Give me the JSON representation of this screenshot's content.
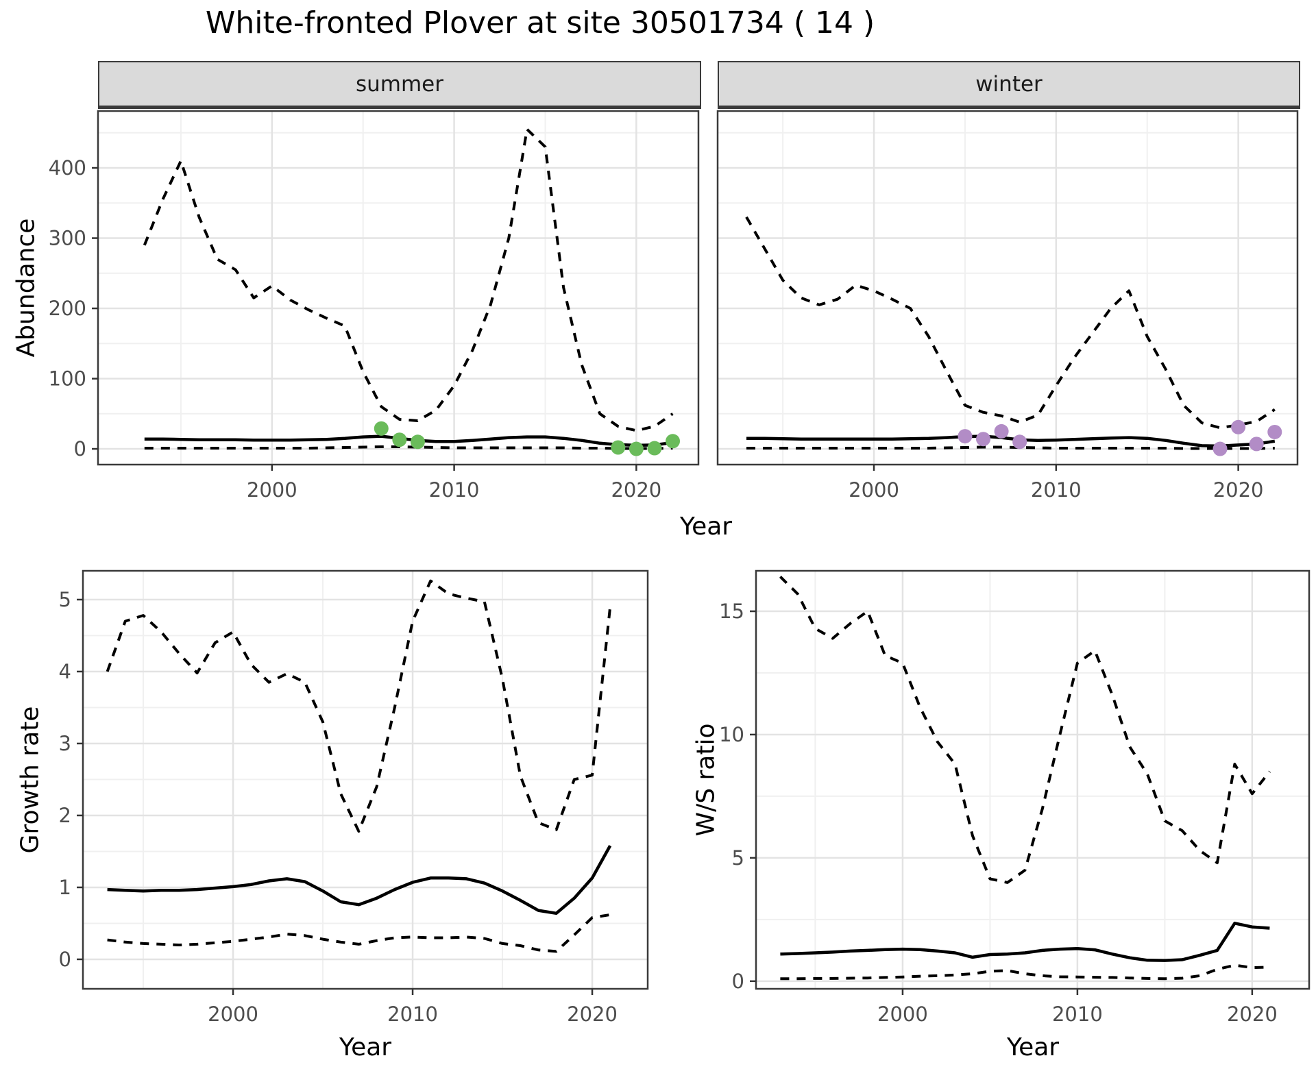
{
  "title": "White-fronted Plover at site 30501734 ( 14 )",
  "colors": {
    "summer_points": "#6ABB5A",
    "winter_points": "#B28CC6",
    "line": "#000000",
    "strip_bg": "#DADADA",
    "panel_border": "#3a3a3a",
    "grid_major": "#E3E3E3",
    "grid_minor": "#F0F0F0",
    "tick_text": "#4d4d4d"
  },
  "chart_data": [
    {
      "id": "abundance_summer",
      "type": "line",
      "facet_label": "summer",
      "ylabel": "Abundance",
      "xlabel": "Year",
      "x_ticks": {
        "values": [
          2000,
          2010,
          2020
        ],
        "labels": [
          "2000",
          "2010",
          "2020"
        ]
      },
      "x_minor": [
        1995,
        2005,
        2015
      ],
      "y_ticks": {
        "values": [
          0,
          100,
          200,
          300,
          400
        ],
        "labels": [
          "0",
          "100",
          "200",
          "300",
          "400"
        ]
      },
      "y_minor": [
        50,
        150,
        250,
        350,
        450
      ],
      "xlim": [
        1990.45,
        2023.41
      ],
      "ylim": [
        -22.4,
        481
      ],
      "grid": true,
      "legend": "none",
      "series": [
        {
          "name": "upper_ci",
          "style": "dashed",
          "x": [
            1993,
            1994,
            1995,
            1996,
            1997,
            1998,
            1999,
            2000,
            2001,
            2002,
            2003,
            2004,
            2005,
            2006,
            2007,
            2008,
            2009,
            2010,
            2011,
            2012,
            2013,
            2014,
            2015,
            2016,
            2017,
            2018,
            2019,
            2020,
            2021,
            2022
          ],
          "y": [
            290,
            355,
            410,
            330,
            270,
            255,
            215,
            232,
            212,
            198,
            186,
            175,
            110,
            60,
            42,
            40,
            55,
            90,
            140,
            205,
            300,
            455,
            430,
            230,
            120,
            50,
            32,
            26,
            32,
            50
          ]
        },
        {
          "name": "median",
          "style": "solid",
          "x": [
            1993,
            1994,
            1995,
            1996,
            1997,
            1998,
            1999,
            2000,
            2001,
            2002,
            2003,
            2004,
            2005,
            2006,
            2007,
            2008,
            2009,
            2010,
            2011,
            2012,
            2013,
            2014,
            2015,
            2016,
            2017,
            2018,
            2019,
            2020,
            2021,
            2022
          ],
          "y": [
            14,
            14,
            13.5,
            13,
            13,
            13,
            12.5,
            12.5,
            12.5,
            13,
            13.5,
            15,
            17,
            18,
            15,
            12,
            10.5,
            10.5,
            12,
            14,
            16,
            17,
            17,
            15,
            12,
            8,
            6,
            5,
            5.5,
            9
          ]
        },
        {
          "name": "lower_ci",
          "style": "dashed",
          "x": [
            1993,
            1994,
            1995,
            1996,
            1997,
            1998,
            1999,
            2000,
            2001,
            2002,
            2003,
            2004,
            2005,
            2006,
            2007,
            2008,
            2009,
            2010,
            2011,
            2012,
            2013,
            2014,
            2015,
            2016,
            2017,
            2018,
            2019,
            2020,
            2021,
            2022
          ],
          "y": [
            1,
            1,
            1,
            1,
            1,
            1,
            1,
            1,
            1,
            1,
            1.5,
            2,
            2.5,
            3,
            3,
            2.5,
            2,
            1.5,
            1.5,
            1.5,
            1.5,
            1.5,
            1.5,
            1.5,
            1,
            1,
            0.5,
            0.5,
            0.5,
            1
          ]
        },
        {
          "name": "observations",
          "style": "points",
          "color": "#6ABB5A",
          "x": [
            2006,
            2007,
            2008,
            2019,
            2020,
            2021,
            2022
          ],
          "y": [
            29,
            13,
            10,
            2,
            0,
            1,
            11
          ]
        }
      ]
    },
    {
      "id": "abundance_winter",
      "type": "line",
      "facet_label": "winter",
      "ylabel": "Abundance",
      "xlabel": "Year",
      "x_ticks": {
        "values": [
          2000,
          2010,
          2020
        ],
        "labels": [
          "2000",
          "2010",
          "2020"
        ]
      },
      "x_minor": [
        1995,
        2005,
        2015
      ],
      "y_ticks": {
        "values": [
          0,
          100,
          200,
          300,
          400
        ],
        "labels": []
      },
      "y_minor": [
        50,
        150,
        250,
        350,
        450
      ],
      "xlim": [
        1991.42,
        2023.25
      ],
      "ylim": [
        -22.4,
        481
      ],
      "grid": true,
      "legend": "none",
      "series": [
        {
          "name": "upper_ci",
          "style": "dashed",
          "x": [
            1993,
            1994,
            1995,
            1996,
            1997,
            1998,
            1999,
            2000,
            2001,
            2002,
            2003,
            2004,
            2005,
            2006,
            2007,
            2008,
            2009,
            2010,
            2011,
            2012,
            2013,
            2014,
            2015,
            2016,
            2017,
            2018,
            2019,
            2020,
            2021,
            2022
          ],
          "y": [
            330,
            285,
            240,
            215,
            205,
            213,
            233,
            225,
            213,
            200,
            160,
            110,
            62,
            52,
            47,
            38,
            48,
            90,
            130,
            165,
            200,
            225,
            160,
            114,
            62,
            37,
            30,
            34,
            39,
            56
          ]
        },
        {
          "name": "median",
          "style": "solid",
          "x": [
            1993,
            1994,
            1995,
            1996,
            1997,
            1998,
            1999,
            2000,
            2001,
            2002,
            2003,
            2004,
            2005,
            2006,
            2007,
            2008,
            2009,
            2010,
            2011,
            2012,
            2013,
            2014,
            2015,
            2016,
            2017,
            2018,
            2019,
            2020,
            2021,
            2022
          ],
          "y": [
            15,
            15,
            14.5,
            14,
            14,
            14,
            14,
            14,
            14,
            14.5,
            15,
            16,
            17.5,
            18,
            16,
            13,
            12,
            12.5,
            13.5,
            14.5,
            15.5,
            16,
            15,
            12,
            8,
            4.5,
            4,
            5.5,
            7,
            11
          ]
        },
        {
          "name": "lower_ci",
          "style": "dashed",
          "x": [
            1993,
            1994,
            1995,
            1996,
            1997,
            1998,
            1999,
            2000,
            2001,
            2002,
            2003,
            2004,
            2005,
            2006,
            2007,
            2008,
            2009,
            2010,
            2011,
            2012,
            2013,
            2014,
            2015,
            2016,
            2017,
            2018,
            2019,
            2020,
            2021,
            2022
          ],
          "y": [
            1,
            1,
            1,
            1,
            1,
            1,
            1,
            1,
            1,
            1,
            1,
            1.5,
            2,
            2.5,
            2.5,
            2,
            1.5,
            1,
            1,
            1,
            1,
            1,
            1,
            1,
            0.5,
            0.5,
            0.5,
            0.5,
            0.5,
            1
          ]
        },
        {
          "name": "observations",
          "style": "points",
          "color": "#B28CC6",
          "x": [
            2005,
            2006,
            2007,
            2008,
            2019,
            2020,
            2021,
            2022
          ],
          "y": [
            18,
            14,
            25,
            10,
            0,
            31,
            7,
            24
          ]
        }
      ]
    },
    {
      "id": "growth_rate",
      "type": "line",
      "facet_label": "",
      "ylabel": "Growth rate",
      "xlabel": "Year",
      "x_ticks": {
        "values": [
          2000,
          2010,
          2020
        ],
        "labels": [
          "2000",
          "2010",
          "2020"
        ]
      },
      "x_minor": [
        1995,
        2005,
        2015
      ],
      "y_ticks": {
        "values": [
          0,
          1,
          2,
          3,
          4,
          5
        ],
        "labels": [
          "0",
          "1",
          "2",
          "3",
          "4",
          "5"
        ]
      },
      "y_minor": [
        0.5,
        1.5,
        2.5,
        3.5,
        4.5
      ],
      "xlim": [
        1991.64,
        2023.09
      ],
      "ylim": [
        -0.41,
        5.4
      ],
      "grid": true,
      "legend": "none",
      "series": [
        {
          "name": "upper_ci",
          "style": "dashed",
          "x": [
            1993,
            1994,
            1995,
            1996,
            1997,
            1998,
            1999,
            2000,
            2001,
            2002,
            2003,
            2004,
            2005,
            2006,
            2007,
            2008,
            2009,
            2010,
            2011,
            2012,
            2013,
            2014,
            2015,
            2016,
            2017,
            2018,
            2019,
            2020,
            2021
          ],
          "y": [
            4.0,
            4.7,
            4.78,
            4.55,
            4.25,
            3.98,
            4.4,
            4.55,
            4.1,
            3.85,
            3.97,
            3.85,
            3.3,
            2.3,
            1.78,
            2.4,
            3.5,
            4.7,
            5.26,
            5.08,
            5.02,
            4.97,
            3.9,
            2.55,
            1.9,
            1.8,
            2.5,
            2.56,
            4.9
          ]
        },
        {
          "name": "median",
          "style": "solid",
          "x": [
            1993,
            1994,
            1995,
            1996,
            1997,
            1998,
            1999,
            2000,
            2001,
            2002,
            2003,
            2004,
            2005,
            2006,
            2007,
            2008,
            2009,
            2010,
            2011,
            2012,
            2013,
            2014,
            2015,
            2016,
            2017,
            2018,
            2019,
            2020,
            2021
          ],
          "y": [
            0.97,
            0.96,
            0.95,
            0.96,
            0.96,
            0.97,
            0.99,
            1.01,
            1.04,
            1.09,
            1.12,
            1.08,
            0.95,
            0.8,
            0.76,
            0.85,
            0.97,
            1.07,
            1.13,
            1.13,
            1.12,
            1.06,
            0.95,
            0.82,
            0.68,
            0.64,
            0.85,
            1.13,
            1.58
          ]
        },
        {
          "name": "lower_ci",
          "style": "dashed",
          "x": [
            1993,
            1994,
            1995,
            1996,
            1997,
            1998,
            1999,
            2000,
            2001,
            2002,
            2003,
            2004,
            2005,
            2006,
            2007,
            2008,
            2009,
            2010,
            2011,
            2012,
            2013,
            2014,
            2015,
            2016,
            2017,
            2018,
            2019,
            2020,
            2021
          ],
          "y": [
            0.27,
            0.24,
            0.22,
            0.21,
            0.2,
            0.21,
            0.23,
            0.25,
            0.28,
            0.31,
            0.35,
            0.33,
            0.28,
            0.24,
            0.21,
            0.26,
            0.3,
            0.31,
            0.3,
            0.3,
            0.31,
            0.29,
            0.22,
            0.19,
            0.13,
            0.11,
            0.34,
            0.58,
            0.62
          ]
        }
      ]
    },
    {
      "id": "ws_ratio",
      "type": "line",
      "facet_label": "",
      "ylabel": "W/S ratio",
      "xlabel": "Year",
      "x_ticks": {
        "values": [
          2000,
          2010,
          2020
        ],
        "labels": [
          "2000",
          "2010",
          "2020"
        ]
      },
      "x_minor": [
        1995,
        2005,
        2015
      ],
      "y_ticks": {
        "values": [
          0,
          5,
          10,
          15
        ],
        "labels": [
          "0",
          "5",
          "10",
          "15"
        ]
      },
      "y_minor": [
        2.5,
        7.5,
        12.5
      ],
      "xlim": [
        1991.61,
        2023.26
      ],
      "ylim": [
        -0.31,
        16.64
      ],
      "grid": true,
      "legend": "none",
      "series": [
        {
          "name": "upper_ci",
          "style": "dashed",
          "x": [
            1993,
            1994,
            1995,
            1996,
            1997,
            1998,
            1999,
            2000,
            2001,
            2002,
            2003,
            2004,
            2005,
            2006,
            2007,
            2008,
            2009,
            2010,
            2011,
            2012,
            2013,
            2014,
            2015,
            2016,
            2017,
            2018,
            2019,
            2020,
            2021
          ],
          "y": [
            16.4,
            15.7,
            14.3,
            13.9,
            14.5,
            15.0,
            13.2,
            12.9,
            11.1,
            9.7,
            8.8,
            5.9,
            4.15,
            4.0,
            4.5,
            7.0,
            10.0,
            12.9,
            13.4,
            11.6,
            9.5,
            8.4,
            6.5,
            6.1,
            5.3,
            4.8,
            8.8,
            7.6,
            8.5
          ]
        },
        {
          "name": "median",
          "style": "solid",
          "x": [
            1993,
            1994,
            1995,
            1996,
            1997,
            1998,
            1999,
            2000,
            2001,
            2002,
            2003,
            2004,
            2005,
            2006,
            2007,
            2008,
            2009,
            2010,
            2011,
            2012,
            2013,
            2014,
            2015,
            2016,
            2017,
            2018,
            2019,
            2020,
            2021
          ],
          "y": [
            1.1,
            1.12,
            1.15,
            1.18,
            1.22,
            1.25,
            1.28,
            1.3,
            1.28,
            1.22,
            1.15,
            0.97,
            1.08,
            1.1,
            1.15,
            1.25,
            1.3,
            1.32,
            1.27,
            1.1,
            0.95,
            0.85,
            0.84,
            0.87,
            1.05,
            1.25,
            2.35,
            2.2,
            2.15
          ]
        },
        {
          "name": "lower_ci",
          "style": "dashed",
          "x": [
            1993,
            1994,
            1995,
            1996,
            1997,
            1998,
            1999,
            2000,
            2001,
            2002,
            2003,
            2004,
            2005,
            2006,
            2007,
            2008,
            2009,
            2010,
            2011,
            2012,
            2013,
            2014,
            2015,
            2016,
            2017,
            2018,
            2019,
            2020,
            2021
          ],
          "y": [
            0.1,
            0.1,
            0.11,
            0.11,
            0.12,
            0.13,
            0.15,
            0.17,
            0.2,
            0.22,
            0.25,
            0.3,
            0.4,
            0.43,
            0.3,
            0.22,
            0.18,
            0.17,
            0.16,
            0.15,
            0.13,
            0.11,
            0.1,
            0.12,
            0.22,
            0.48,
            0.65,
            0.55,
            0.57
          ]
        }
      ]
    }
  ]
}
